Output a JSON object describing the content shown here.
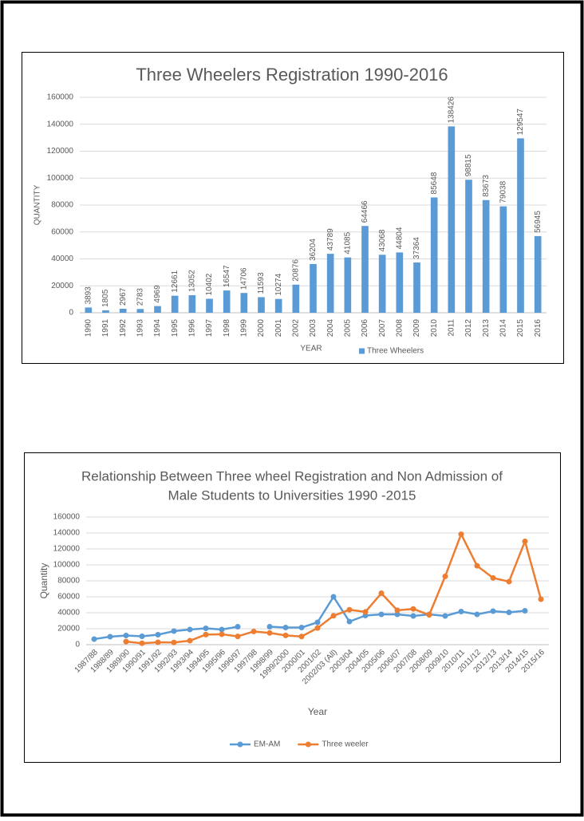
{
  "chart_data": [
    {
      "type": "bar",
      "title": [
        "Three Wheelers Registration 1990-2016"
      ],
      "x_label": "YEAR",
      "y_label": "QUANTITY",
      "categories": [
        "1990",
        "1991",
        "1992",
        "1993",
        "1994",
        "1995",
        "1996",
        "1997",
        "1998",
        "1999",
        "2000",
        "2001",
        "2002",
        "2003",
        "2004",
        "2005",
        "2006",
        "2007",
        "2008",
        "2009",
        "2010",
        "2011",
        "2012",
        "2013",
        "2014",
        "2015",
        "2016"
      ],
      "series": [
        {
          "name": "Three Wheelers",
          "color": "#5b9bd5",
          "values": [
            3893,
            1805,
            2967,
            2783,
            4969,
            12661,
            13052,
            10402,
            16547,
            14706,
            11593,
            10274,
            20876,
            36204,
            43789,
            41085,
            64466,
            43068,
            44804,
            37364,
            85648,
            138426,
            98815,
            83673,
            79038,
            129547,
            56945
          ]
        }
      ],
      "ylim": [
        0,
        160000
      ],
      "yticks": [
        0,
        20000,
        40000,
        60000,
        80000,
        100000,
        120000,
        140000,
        160000
      ],
      "grid": true,
      "legend": "bottom",
      "data_labels": true
    },
    {
      "type": "line",
      "title": [
        "Relationship Between Three wheel Registration and Non Admission of",
        "Male Students to Universities 1990 -2015"
      ],
      "x_label": "Year",
      "y_label": "Quantity",
      "categories": [
        "1987/88",
        "1988/89",
        "1989/90",
        "1990/91",
        "1991/92",
        "1992/93",
        "1993/94",
        "1994/95",
        "1995/96",
        "1996/97",
        "1997/98",
        "1998/99",
        "1999/2000",
        "2000/01",
        "2001/02",
        "2002/03 (All)",
        "2003/04",
        "2004/05",
        "2005/06",
        "2006/07",
        "2007/08",
        "2008/09",
        "2009/10",
        "2010/11",
        "2011/12",
        "2012/13",
        "2013/14",
        "2014/15",
        "2015/16"
      ],
      "series": [
        {
          "name": "EM-AM",
          "color": "#5b9bd5",
          "values": [
            7000,
            10000,
            11500,
            10500,
            12500,
            17000,
            19000,
            20500,
            19000,
            22500,
            null,
            22500,
            21500,
            21500,
            28000,
            60000,
            29000,
            36500,
            38000,
            38000,
            36000,
            38000,
            36000,
            41500,
            38000,
            42000,
            40500,
            42500,
            null
          ]
        },
        {
          "name": "Three weeler",
          "color": "#ed7d31",
          "values": [
            null,
            null,
            3893,
            1805,
            2967,
            2783,
            4969,
            12661,
            13052,
            10402,
            16547,
            14706,
            11593,
            10274,
            20876,
            36204,
            43789,
            41085,
            64466,
            43068,
            44804,
            37364,
            85648,
            138426,
            98815,
            83673,
            79038,
            129547,
            56945
          ]
        }
      ],
      "ylim": [
        0,
        160000
      ],
      "yticks": [
        0,
        20000,
        40000,
        60000,
        80000,
        100000,
        120000,
        140000,
        160000
      ],
      "grid": true,
      "legend": "bottom",
      "data_labels": false
    }
  ]
}
